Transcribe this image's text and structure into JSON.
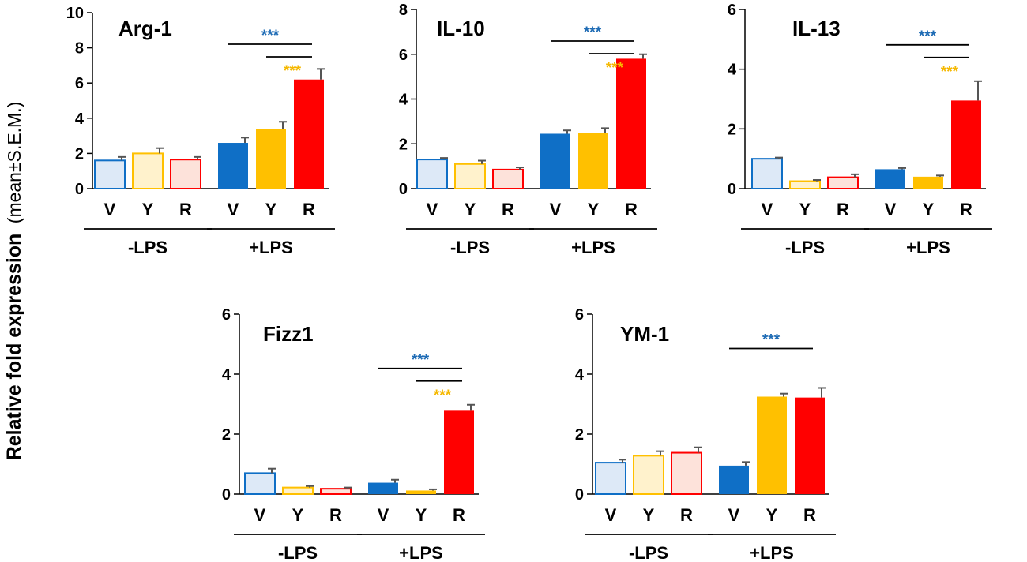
{
  "ylabel": {
    "main": "Relative fold expression",
    "sub": "(mean±S.E.M.)"
  },
  "colors": {
    "V": "#0f6fc6",
    "Y": "#ffc000",
    "R": "#ff0000",
    "V_light": "#dde9f7",
    "Y_light": "#fff2cc",
    "R_light": "#fde2da",
    "sig_blue": "#1f6cb5",
    "sig_yellow": "#f5b800"
  },
  "chart_data": [
    {
      "type": "bar",
      "title": "Arg-1",
      "categories": [
        "V",
        "Y",
        "R",
        "V",
        "Y",
        "R"
      ],
      "groups": [
        "-LPS",
        "+LPS"
      ],
      "values": [
        1.6,
        2.0,
        1.65,
        2.6,
        3.4,
        6.2
      ],
      "errors": [
        0.2,
        0.3,
        0.15,
        0.3,
        0.4,
        0.6
      ],
      "ylim": [
        0,
        10
      ],
      "yticks": [
        0,
        2,
        4,
        6,
        8,
        10
      ],
      "significance": [
        {
          "from": 3,
          "to": 5,
          "label": "***",
          "color": "blue"
        },
        {
          "from": 4,
          "to": 5,
          "label": "***",
          "color": "yellow"
        }
      ]
    },
    {
      "type": "bar",
      "title": "IL-10",
      "categories": [
        "V",
        "Y",
        "R",
        "V",
        "Y",
        "R"
      ],
      "groups": [
        "-LPS",
        "+LPS"
      ],
      "values": [
        1.3,
        1.1,
        0.85,
        2.45,
        2.5,
        5.8
      ],
      "errors": [
        0.07,
        0.15,
        0.1,
        0.15,
        0.2,
        0.2
      ],
      "ylim": [
        0,
        8
      ],
      "yticks": [
        0,
        2,
        4,
        6,
        8
      ],
      "significance": [
        {
          "from": 3,
          "to": 5,
          "label": "***",
          "color": "blue"
        },
        {
          "from": 4,
          "to": 5,
          "label": "***",
          "color": "yellow"
        }
      ]
    },
    {
      "type": "bar",
      "title": "IL-13",
      "categories": [
        "V",
        "Y",
        "R",
        "V",
        "Y",
        "R"
      ],
      "groups": [
        "-LPS",
        "+LPS"
      ],
      "values": [
        1.0,
        0.25,
        0.38,
        0.65,
        0.4,
        2.95
      ],
      "errors": [
        0.04,
        0.04,
        0.1,
        0.04,
        0.04,
        0.65
      ],
      "ylim": [
        0,
        6
      ],
      "yticks": [
        0,
        2,
        4,
        6
      ],
      "significance": [
        {
          "from": 3,
          "to": 5,
          "label": "***",
          "color": "blue"
        },
        {
          "from": 4,
          "to": 5,
          "label": "***",
          "color": "yellow"
        }
      ]
    },
    {
      "type": "bar",
      "title": "Fizz1",
      "categories": [
        "V",
        "Y",
        "R",
        "V",
        "Y",
        "R"
      ],
      "groups": [
        "-LPS",
        "+LPS"
      ],
      "values": [
        0.7,
        0.22,
        0.18,
        0.38,
        0.12,
        2.78
      ],
      "errors": [
        0.15,
        0.05,
        0.04,
        0.1,
        0.04,
        0.2
      ],
      "ylim": [
        0,
        6
      ],
      "yticks": [
        0,
        2,
        4,
        6
      ],
      "significance": [
        {
          "from": 3,
          "to": 5,
          "label": "***",
          "color": "blue"
        },
        {
          "from": 4,
          "to": 5,
          "label": "***",
          "color": "yellow"
        }
      ]
    },
    {
      "type": "bar",
      "title": "YM-1",
      "categories": [
        "V",
        "Y",
        "R",
        "V",
        "Y",
        "R"
      ],
      "groups": [
        "-LPS",
        "+LPS"
      ],
      "values": [
        1.05,
        1.28,
        1.38,
        0.95,
        3.25,
        3.22
      ],
      "errors": [
        0.1,
        0.15,
        0.18,
        0.12,
        0.1,
        0.32
      ],
      "ylim": [
        0,
        6
      ],
      "yticks": [
        0,
        2,
        4,
        6
      ],
      "significance": [
        {
          "from": 3,
          "to": 5,
          "label": "***",
          "color": "blue"
        }
      ]
    }
  ]
}
